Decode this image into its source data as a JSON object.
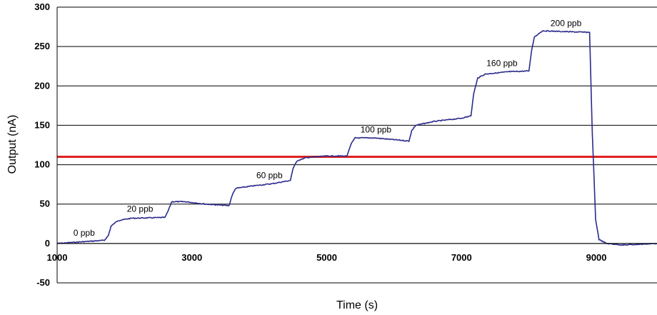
{
  "chart_data": {
    "type": "line",
    "title": "",
    "xlabel": "Time (s)",
    "ylabel": "Output (nA)",
    "xlim": [
      1000,
      9900
    ],
    "ylim": [
      -50,
      300
    ],
    "x_ticks": [
      "1000",
      "3000",
      "5000",
      "7000",
      "9000"
    ],
    "x_tick_values": [
      1000,
      3000,
      5000,
      7000,
      9000
    ],
    "y_ticks": [
      "300",
      "250",
      "200",
      "150",
      "100",
      "50",
      "0",
      "-50"
    ],
    "y_tick_values": [
      300,
      250,
      200,
      150,
      100,
      50,
      0,
      -50
    ],
    "grid": "horizontal",
    "series": [
      {
        "color": "#2b2a8c",
        "points": [
          [
            1000,
            0
          ],
          [
            1700,
            4
          ],
          [
            1760,
            10
          ],
          [
            1800,
            22
          ],
          [
            1900,
            29
          ],
          [
            2100,
            32
          ],
          [
            2600,
            33
          ],
          [
            2640,
            40
          ],
          [
            2700,
            53
          ],
          [
            2900,
            53
          ],
          [
            3200,
            50
          ],
          [
            3550,
            48
          ],
          [
            3600,
            62
          ],
          [
            3650,
            70
          ],
          [
            3900,
            73
          ],
          [
            4200,
            76
          ],
          [
            4460,
            80
          ],
          [
            4500,
            95
          ],
          [
            4560,
            105
          ],
          [
            4700,
            109
          ],
          [
            5000,
            111
          ],
          [
            5300,
            111
          ],
          [
            5360,
            126
          ],
          [
            5420,
            134
          ],
          [
            5700,
            134
          ],
          [
            6100,
            131
          ],
          [
            6220,
            130
          ],
          [
            6260,
            143
          ],
          [
            6320,
            150
          ],
          [
            6600,
            155
          ],
          [
            7000,
            159
          ],
          [
            7140,
            162
          ],
          [
            7180,
            190
          ],
          [
            7240,
            210
          ],
          [
            7350,
            215
          ],
          [
            7700,
            218
          ],
          [
            8000,
            219
          ],
          [
            8040,
            245
          ],
          [
            8080,
            262
          ],
          [
            8200,
            270
          ],
          [
            8500,
            269
          ],
          [
            8900,
            268
          ],
          [
            8940,
            140
          ],
          [
            8990,
            30
          ],
          [
            9040,
            5
          ],
          [
            9150,
            0
          ],
          [
            9400,
            -2
          ],
          [
            9900,
            0
          ]
        ]
      }
    ],
    "threshold_line": {
      "y": 110,
      "color": "#e02020"
    },
    "annotations": [
      {
        "text": "0 ppb",
        "x": 1400,
        "y": 10
      },
      {
        "text": "20 ppb",
        "x": 2230,
        "y": 40
      },
      {
        "text": "60 ppb",
        "x": 4150,
        "y": 83
      },
      {
        "text": "100 ppb",
        "x": 5730,
        "y": 141
      },
      {
        "text": "160 ppb",
        "x": 7600,
        "y": 225
      },
      {
        "text": "200 ppb",
        "x": 8550,
        "y": 276
      }
    ]
  }
}
